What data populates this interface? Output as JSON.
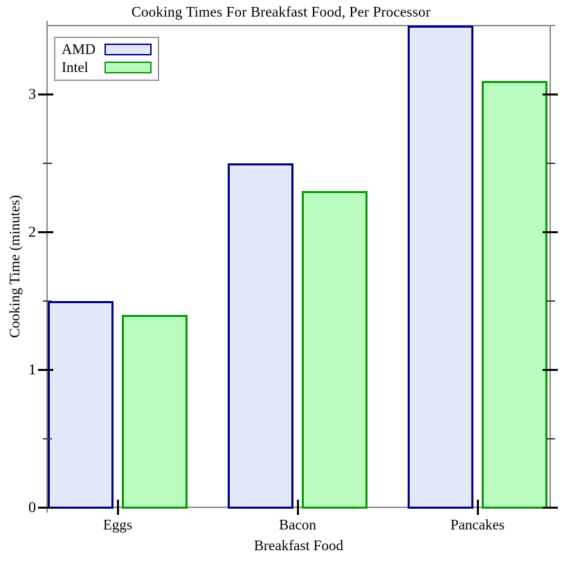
{
  "chart_data": {
    "type": "bar",
    "title": "Cooking Times For Breakfast Food, Per Processor",
    "xlabel": "Breakfast Food",
    "ylabel": "Cooking Time (minutes)",
    "categories": [
      "Eggs",
      "Bacon",
      "Pancakes"
    ],
    "series": [
      {
        "name": "AMD",
        "values": [
          1.5,
          2.5,
          3.5
        ],
        "fill": "#e2e7fa",
        "border": "#00008b"
      },
      {
        "name": "Intel",
        "values": [
          1.4,
          2.3,
          3.1
        ],
        "fill": "#b9fcbd",
        "border": "#0a9a0a"
      }
    ],
    "ylim": [
      0,
      3.5
    ],
    "yticks_major": [
      0,
      1,
      2,
      3
    ],
    "yticks_minor": [
      0.5,
      1.5,
      2.5
    ],
    "grid": false,
    "legend_position": "top-left"
  },
  "colors": {
    "axis_frame": "#8a8a8a",
    "major_tick": "#0a0a0a",
    "minor_tick": "#3d3d3d",
    "legend_border": "#9a9a9a",
    "background": "#ffffff"
  }
}
